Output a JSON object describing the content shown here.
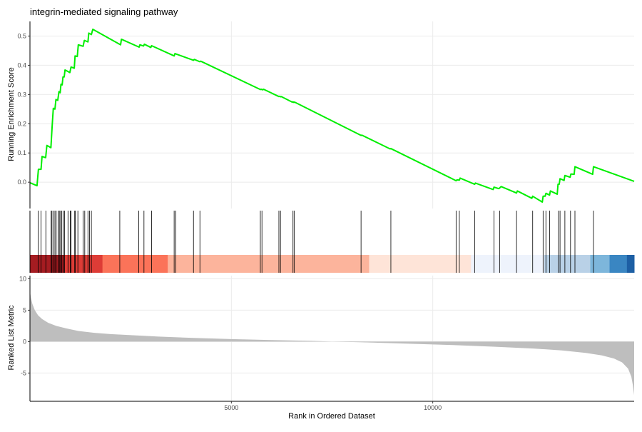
{
  "chart_data": {
    "type": "line",
    "title": "integrin-mediated signaling pathway",
    "xlabel": "Rank in Ordered Dataset",
    "x_ticks": [
      5000,
      10000
    ],
    "xlim": [
      0,
      15000
    ],
    "colors": {
      "running_score": "#00EE00",
      "ranked_area": "#BEBEBE",
      "hit_line": "#000000",
      "grid": "#EBEBEB",
      "axis": "#333333"
    },
    "running_score": {
      "ylabel": "Running Enrichment Score",
      "ylim": [
        -0.09,
        0.55
      ],
      "y_ticks": [
        0.0,
        0.1,
        0.2,
        0.3,
        0.4,
        0.5
      ],
      "y_tick_labels": [
        "0.0",
        "0.1",
        "0.2",
        "0.3",
        "0.4",
        "0.5"
      ],
      "points": [
        [
          0,
          -0.002
        ],
        [
          175,
          -0.012
        ],
        [
          210,
          0.044
        ],
        [
          275,
          0.044
        ],
        [
          300,
          0.088
        ],
        [
          390,
          0.084
        ],
        [
          420,
          0.126
        ],
        [
          520,
          0.118
        ],
        [
          550,
          0.19
        ],
        [
          580,
          0.253
        ],
        [
          620,
          0.25
        ],
        [
          645,
          0.283
        ],
        [
          690,
          0.28
        ],
        [
          720,
          0.31
        ],
        [
          750,
          0.306
        ],
        [
          770,
          0.335
        ],
        [
          800,
          0.333
        ],
        [
          820,
          0.36
        ],
        [
          850,
          0.36
        ],
        [
          870,
          0.384
        ],
        [
          940,
          0.379
        ],
        [
          990,
          0.375
        ],
        [
          1020,
          0.394
        ],
        [
          1100,
          0.39
        ],
        [
          1120,
          0.432
        ],
        [
          1175,
          0.43
        ],
        [
          1200,
          0.47
        ],
        [
          1320,
          0.465
        ],
        [
          1350,
          0.485
        ],
        [
          1440,
          0.48
        ],
        [
          1460,
          0.51
        ],
        [
          1525,
          0.505
        ],
        [
          1560,
          0.523
        ],
        [
          2250,
          0.47
        ],
        [
          2270,
          0.489
        ],
        [
          2710,
          0.462
        ],
        [
          2730,
          0.47
        ],
        [
          2820,
          0.466
        ],
        [
          2840,
          0.472
        ],
        [
          3000,
          0.461
        ],
        [
          3020,
          0.467
        ],
        [
          3580,
          0.432
        ],
        [
          3600,
          0.44
        ],
        [
          4060,
          0.417
        ],
        [
          4080,
          0.42
        ],
        [
          4220,
          0.412
        ],
        [
          4240,
          0.414
        ],
        [
          5720,
          0.317
        ],
        [
          5740,
          0.318
        ],
        [
          5780,
          0.316
        ],
        [
          5800,
          0.318
        ],
        [
          6180,
          0.293
        ],
        [
          6200,
          0.294
        ],
        [
          6220,
          0.292
        ],
        [
          6240,
          0.293
        ],
        [
          6510,
          0.274
        ],
        [
          6530,
          0.275
        ],
        [
          6550,
          0.273
        ],
        [
          6570,
          0.274
        ],
        [
          8220,
          0.16
        ],
        [
          8240,
          0.161
        ],
        [
          8940,
          0.114
        ],
        [
          8960,
          0.115
        ],
        [
          10580,
          0.005
        ],
        [
          10600,
          0.008
        ],
        [
          10660,
          0.007
        ],
        [
          10680,
          0.014
        ],
        [
          11040,
          -0.007
        ],
        [
          11060,
          -0.003
        ],
        [
          11500,
          -0.025
        ],
        [
          11520,
          -0.017
        ],
        [
          11640,
          -0.022
        ],
        [
          11660,
          -0.02
        ],
        [
          11680,
          -0.017
        ],
        [
          11700,
          -0.015
        ],
        [
          12080,
          -0.037
        ],
        [
          12100,
          -0.03
        ],
        [
          12460,
          -0.055
        ],
        [
          12480,
          -0.048
        ],
        [
          12720,
          -0.068
        ],
        [
          12740,
          -0.048
        ],
        [
          12790,
          -0.048
        ],
        [
          12810,
          -0.038
        ],
        [
          12900,
          -0.044
        ],
        [
          12920,
          -0.03
        ],
        [
          13090,
          -0.041
        ],
        [
          13110,
          -0.007
        ],
        [
          13140,
          -0.007
        ],
        [
          13160,
          0.012
        ],
        [
          13260,
          0.006
        ],
        [
          13280,
          0.023
        ],
        [
          13410,
          0.017
        ],
        [
          13430,
          0.028
        ],
        [
          13510,
          0.027
        ],
        [
          13530,
          0.053
        ],
        [
          13970,
          0.027
        ],
        [
          13990,
          0.053
        ],
        [
          15000,
          0.003
        ]
      ]
    },
    "hits": {
      "ranks": [
        205,
        275,
        395,
        525,
        545,
        575,
        620,
        650,
        700,
        730,
        760,
        790,
        825,
        860,
        945,
        1000,
        1020,
        1110,
        1125,
        1190,
        1320,
        1360,
        1440,
        1480,
        1525,
        2230,
        2700,
        2830,
        3020,
        3580,
        3620,
        4060,
        4220,
        5720,
        5760,
        6180,
        6220,
        6530,
        6560,
        8220,
        8960,
        10580,
        10660,
        11040,
        11520,
        11660,
        12080,
        12480,
        12740,
        12810,
        12900,
        13120,
        13160,
        13280,
        13420,
        13530,
        13990
      ]
    },
    "color_bar": {
      "segments": [
        {
          "start": 0,
          "end": 850,
          "color": "#A51C21"
        },
        {
          "start": 850,
          "end": 1800,
          "color": "#DE3C36"
        },
        {
          "start": 1800,
          "end": 3420,
          "color": "#FB7359"
        },
        {
          "start": 3420,
          "end": 8420,
          "color": "#FCB49C"
        },
        {
          "start": 8420,
          "end": 10950,
          "color": "#FEE4D8"
        },
        {
          "start": 10950,
          "end": 12770,
          "color": "#EEF3FC"
        },
        {
          "start": 12770,
          "end": 13910,
          "color": "#B9D1E7"
        },
        {
          "start": 13910,
          "end": 14390,
          "color": "#7DB6DB"
        },
        {
          "start": 14390,
          "end": 14820,
          "color": "#3A86C2"
        },
        {
          "start": 14820,
          "end": 15000,
          "color": "#1D5FA4"
        }
      ]
    },
    "ranked_metric": {
      "ylabel": "Ranked List Metric",
      "ylim": [
        -9.5,
        10.5
      ],
      "y_ticks": [
        -5,
        0,
        5,
        10
      ],
      "y_tick_labels": [
        "-5",
        "0",
        "5",
        "10"
      ],
      "points": [
        [
          0,
          8.0
        ],
        [
          20,
          7.1
        ],
        [
          60,
          6.0
        ],
        [
          120,
          5.0
        ],
        [
          200,
          4.2
        ],
        [
          300,
          3.6
        ],
        [
          450,
          3.0
        ],
        [
          650,
          2.5
        ],
        [
          900,
          2.1
        ],
        [
          1200,
          1.7
        ],
        [
          1600,
          1.4
        ],
        [
          2000,
          1.2
        ],
        [
          2600,
          1.0
        ],
        [
          3200,
          0.8
        ],
        [
          4000,
          0.6
        ],
        [
          5000,
          0.4
        ],
        [
          6000,
          0.25
        ],
        [
          7000,
          0.12
        ],
        [
          7500,
          0.0
        ],
        [
          8500,
          -0.15
        ],
        [
          9500,
          -0.35
        ],
        [
          10500,
          -0.55
        ],
        [
          11500,
          -0.8
        ],
        [
          12500,
          -1.1
        ],
        [
          13200,
          -1.4
        ],
        [
          13800,
          -1.8
        ],
        [
          14200,
          -2.2
        ],
        [
          14500,
          -2.7
        ],
        [
          14700,
          -3.3
        ],
        [
          14850,
          -4.3
        ],
        [
          14930,
          -5.6
        ],
        [
          14970,
          -7.0
        ],
        [
          15000,
          -8.5
        ]
      ]
    }
  }
}
